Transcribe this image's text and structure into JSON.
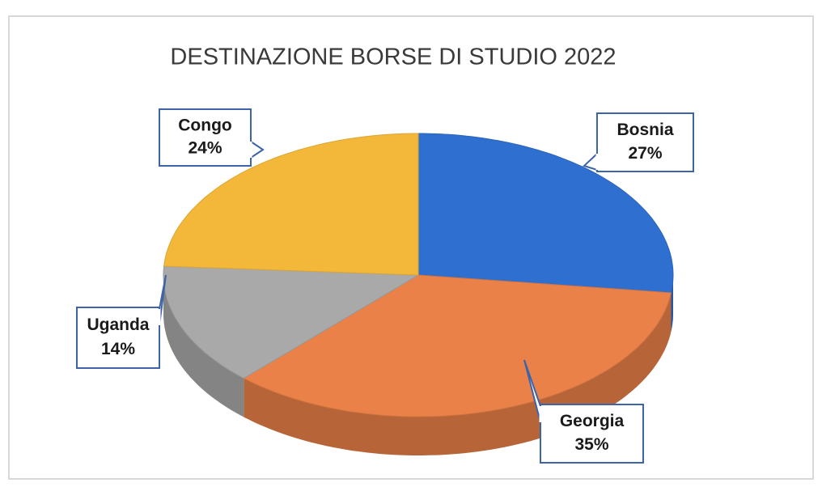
{
  "chart_data": {
    "type": "pie",
    "title": "DESTINAZIONE BORSE DI STUDIO 2022",
    "categories": [
      "Bosnia",
      "Georgia",
      "Uganda",
      "Congo"
    ],
    "values": [
      27,
      35,
      14,
      24
    ],
    "value_labels": [
      "27%",
      "35%",
      "14%",
      "24%"
    ],
    "colors": [
      "#2f6fd0",
      "#ea8148",
      "#a9a9a9",
      "#f3b73a"
    ]
  }
}
